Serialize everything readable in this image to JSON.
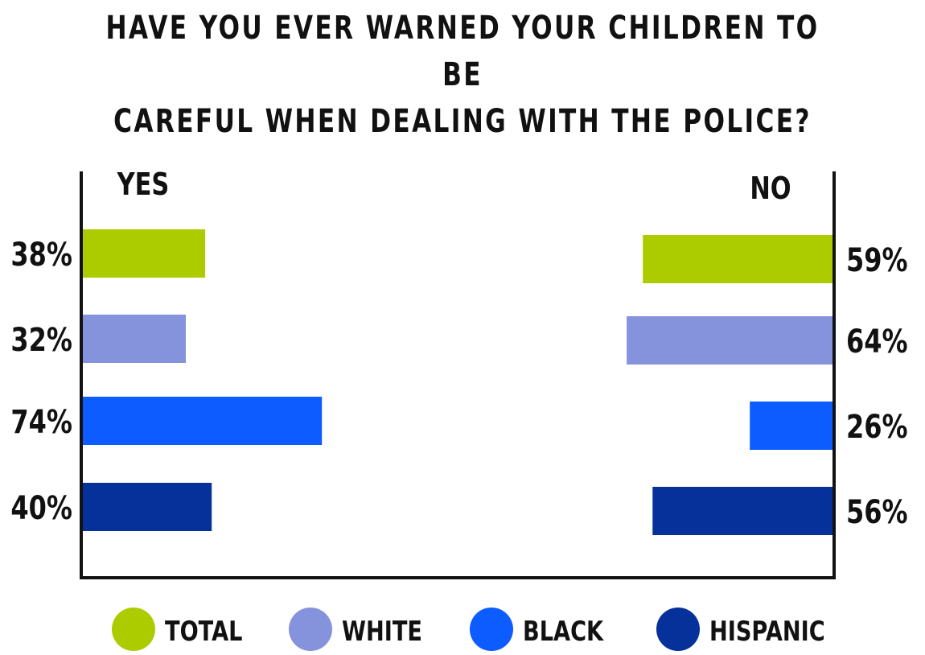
{
  "chart_data": {
    "type": "bar",
    "title_lines": [
      "HAVE YOU EVER WARNED YOUR CHILDREN TO BE",
      "CAREFUL WHEN DEALING WITH THE POLICE?"
    ],
    "panels": [
      "YES",
      "NO"
    ],
    "xlim": [
      0,
      100
    ],
    "grid": false,
    "legend_position": "bottom",
    "series": [
      {
        "name": "TOTAL",
        "color": "#adcc00",
        "yes": 38,
        "no": 59,
        "yes_label": "38%",
        "no_label": "59%"
      },
      {
        "name": "WHITE",
        "color": "#8593dc",
        "yes": 32,
        "no": 64,
        "yes_label": "32%",
        "no_label": "64%"
      },
      {
        "name": "BLACK",
        "color": "#0c5cff",
        "yes": 74,
        "no": 26,
        "yes_label": "74%",
        "no_label": "26%"
      },
      {
        "name": "HISPANIC",
        "color": "#06309a",
        "yes": 40,
        "no": 56,
        "yes_label": "40%",
        "no_label": "56%"
      }
    ]
  }
}
